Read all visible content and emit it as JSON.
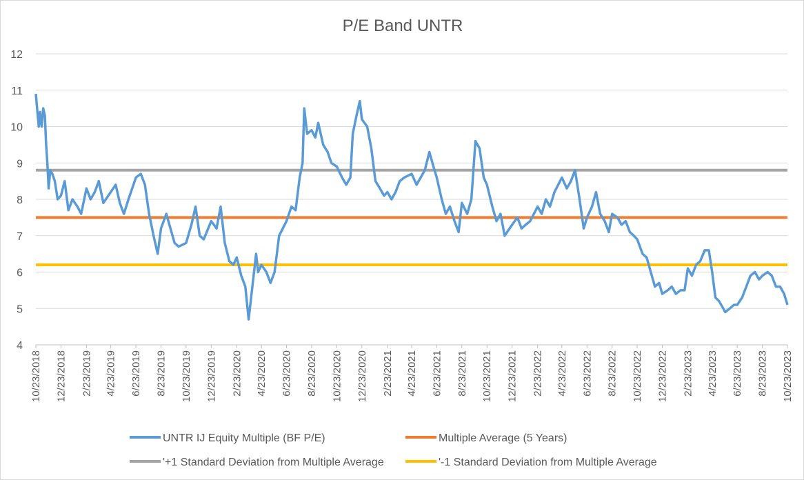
{
  "chart_data": {
    "type": "line",
    "title": "P/E Band UNTR",
    "xlabel": "",
    "ylabel": "",
    "ylim": [
      4,
      12
    ],
    "yticks": [
      "4",
      "5",
      "6",
      "7",
      "8",
      "9",
      "10",
      "11",
      "12"
    ],
    "xrange": [
      "10/23/2018",
      "10/23/2023"
    ],
    "xticks": [
      "10/23/2018",
      "12/23/2018",
      "2/23/2019",
      "4/23/2019",
      "6/23/2019",
      "8/23/2019",
      "10/23/2019",
      "12/23/2019",
      "2/23/2020",
      "4/23/2020",
      "6/23/2020",
      "8/23/2020",
      "10/23/2020",
      "12/23/2020",
      "2/23/2021",
      "4/23/2021",
      "6/23/2021",
      "8/23/2021",
      "10/23/2021",
      "12/23/2021",
      "2/23/2022",
      "4/23/2022",
      "6/23/2022",
      "8/23/2022",
      "10/23/2022",
      "12/23/2022",
      "2/23/2023",
      "4/23/2023",
      "6/23/2023",
      "8/23/2023",
      "10/23/2023"
    ],
    "grid": true,
    "legend_position": "bottom",
    "series": [
      {
        "name": "UNTR IJ Equity Multiple (BF P/E)",
        "color": "#5b9bd5",
        "points": [
          [
            "10/23/2018",
            10.9
          ],
          [
            "10/26/2018",
            10.5
          ],
          [
            "10/30/2018",
            10.0
          ],
          [
            "11/2/2018",
            10.4
          ],
          [
            "11/6/2018",
            10.0
          ],
          [
            "11/10/2018",
            10.5
          ],
          [
            "11/14/2018",
            10.3
          ],
          [
            "11/17/2018",
            9.5
          ],
          [
            "11/20/2018",
            9.0
          ],
          [
            "11/23/2018",
            8.3
          ],
          [
            "11/27/2018",
            8.8
          ],
          [
            "12/2/2018",
            8.7
          ],
          [
            "12/8/2018",
            8.5
          ],
          [
            "12/15/2018",
            8.0
          ],
          [
            "12/23/2018",
            8.1
          ],
          [
            "1/1/2019",
            8.5
          ],
          [
            "1/10/2019",
            7.7
          ],
          [
            "1/20/2019",
            8.0
          ],
          [
            "2/1/2019",
            7.8
          ],
          [
            "2/10/2019",
            7.6
          ],
          [
            "2/23/2019",
            8.3
          ],
          [
            "3/5/2019",
            8.0
          ],
          [
            "3/15/2019",
            8.2
          ],
          [
            "3/25/2019",
            8.5
          ],
          [
            "4/5/2019",
            7.9
          ],
          [
            "4/23/2019",
            8.2
          ],
          [
            "5/5/2019",
            8.4
          ],
          [
            "5/15/2019",
            7.9
          ],
          [
            "5/25/2019",
            7.6
          ],
          [
            "6/5/2019",
            8.0
          ],
          [
            "6/23/2019",
            8.6
          ],
          [
            "7/5/2019",
            8.7
          ],
          [
            "7/15/2019",
            8.4
          ],
          [
            "7/25/2019",
            7.6
          ],
          [
            "8/5/2019",
            7.0
          ],
          [
            "8/15/2019",
            6.5
          ],
          [
            "8/23/2019",
            7.2
          ],
          [
            "9/5/2019",
            7.6
          ],
          [
            "9/15/2019",
            7.2
          ],
          [
            "9/25/2019",
            6.8
          ],
          [
            "10/5/2019",
            6.7
          ],
          [
            "10/23/2019",
            6.8
          ],
          [
            "11/5/2019",
            7.3
          ],
          [
            "11/15/2019",
            7.8
          ],
          [
            "11/25/2019",
            7.0
          ],
          [
            "12/5/2019",
            6.9
          ],
          [
            "12/23/2019",
            7.4
          ],
          [
            "1/5/2020",
            7.2
          ],
          [
            "1/15/2020",
            7.8
          ],
          [
            "1/25/2020",
            6.8
          ],
          [
            "2/5/2020",
            6.3
          ],
          [
            "2/15/2020",
            6.2
          ],
          [
            "2/23/2020",
            6.4
          ],
          [
            "3/5/2020",
            5.9
          ],
          [
            "3/15/2020",
            5.6
          ],
          [
            "3/23/2020",
            4.7
          ],
          [
            "4/1/2020",
            5.6
          ],
          [
            "4/10/2020",
            6.5
          ],
          [
            "4/15/2020",
            6.0
          ],
          [
            "4/23/2020",
            6.2
          ],
          [
            "5/5/2020",
            6.0
          ],
          [
            "5/15/2020",
            5.7
          ],
          [
            "5/25/2020",
            6.0
          ],
          [
            "6/5/2020",
            7.0
          ],
          [
            "6/23/2020",
            7.4
          ],
          [
            "7/5/2020",
            7.8
          ],
          [
            "7/15/2020",
            7.7
          ],
          [
            "7/25/2020",
            8.6
          ],
          [
            "8/1/2020",
            9.0
          ],
          [
            "8/5/2020",
            10.5
          ],
          [
            "8/12/2020",
            9.8
          ],
          [
            "8/23/2020",
            9.9
          ],
          [
            "9/1/2020",
            9.7
          ],
          [
            "9/8/2020",
            10.1
          ],
          [
            "9/20/2020",
            9.5
          ],
          [
            "10/1/2020",
            9.3
          ],
          [
            "10/10/2020",
            9.0
          ],
          [
            "10/23/2020",
            8.9
          ],
          [
            "11/5/2020",
            8.6
          ],
          [
            "11/15/2020",
            8.4
          ],
          [
            "11/25/2020",
            8.6
          ],
          [
            "12/1/2020",
            9.8
          ],
          [
            "12/10/2020",
            10.3
          ],
          [
            "12/18/2020",
            10.7
          ],
          [
            "12/23/2020",
            10.2
          ],
          [
            "1/5/2021",
            10.0
          ],
          [
            "1/15/2021",
            9.4
          ],
          [
            "1/25/2021",
            8.5
          ],
          [
            "2/5/2021",
            8.3
          ],
          [
            "2/15/2021",
            8.1
          ],
          [
            "2/23/2021",
            8.2
          ],
          [
            "3/5/2021",
            8.0
          ],
          [
            "3/15/2021",
            8.2
          ],
          [
            "3/25/2021",
            8.5
          ],
          [
            "4/5/2021",
            8.6
          ],
          [
            "4/23/2021",
            8.7
          ],
          [
            "5/5/2021",
            8.4
          ],
          [
            "5/15/2021",
            8.6
          ],
          [
            "5/25/2021",
            8.8
          ],
          [
            "6/5/2021",
            9.3
          ],
          [
            "6/15/2021",
            8.9
          ],
          [
            "6/23/2021",
            8.6
          ],
          [
            "7/5/2021",
            8.0
          ],
          [
            "7/15/2021",
            7.6
          ],
          [
            "7/25/2021",
            7.8
          ],
          [
            "8/5/2021",
            7.4
          ],
          [
            "8/15/2021",
            7.1
          ],
          [
            "8/23/2021",
            7.9
          ],
          [
            "9/5/2021",
            7.6
          ],
          [
            "9/15/2021",
            8.0
          ],
          [
            "9/25/2021",
            9.6
          ],
          [
            "10/5/2021",
            9.4
          ],
          [
            "10/15/2021",
            8.6
          ],
          [
            "10/23/2021",
            8.4
          ],
          [
            "11/5/2021",
            7.8
          ],
          [
            "11/15/2021",
            7.4
          ],
          [
            "11/25/2021",
            7.6
          ],
          [
            "12/5/2021",
            7.0
          ],
          [
            "12/23/2021",
            7.3
          ],
          [
            "1/5/2022",
            7.5
          ],
          [
            "1/15/2022",
            7.2
          ],
          [
            "1/25/2022",
            7.3
          ],
          [
            "2/5/2022",
            7.4
          ],
          [
            "2/23/2022",
            7.8
          ],
          [
            "3/5/2022",
            7.6
          ],
          [
            "3/15/2022",
            8.0
          ],
          [
            "3/25/2022",
            7.8
          ],
          [
            "4/5/2022",
            8.2
          ],
          [
            "4/23/2022",
            8.6
          ],
          [
            "5/5/2022",
            8.3
          ],
          [
            "5/15/2022",
            8.5
          ],
          [
            "5/25/2022",
            8.8
          ],
          [
            "6/5/2022",
            8.0
          ],
          [
            "6/15/2022",
            7.2
          ],
          [
            "6/23/2022",
            7.5
          ],
          [
            "7/5/2022",
            7.8
          ],
          [
            "7/15/2022",
            8.2
          ],
          [
            "7/25/2022",
            7.6
          ],
          [
            "8/5/2022",
            7.4
          ],
          [
            "8/15/2022",
            7.1
          ],
          [
            "8/23/2022",
            7.6
          ],
          [
            "9/5/2022",
            7.5
          ],
          [
            "9/15/2022",
            7.3
          ],
          [
            "9/25/2022",
            7.4
          ],
          [
            "10/5/2022",
            7.1
          ],
          [
            "10/15/2022",
            7.0
          ],
          [
            "10/23/2022",
            6.9
          ],
          [
            "11/5/2022",
            6.5
          ],
          [
            "11/15/2022",
            6.4
          ],
          [
            "11/25/2022",
            6.0
          ],
          [
            "12/5/2022",
            5.6
          ],
          [
            "12/15/2022",
            5.7
          ],
          [
            "12/23/2022",
            5.4
          ],
          [
            "1/5/2023",
            5.5
          ],
          [
            "1/15/2023",
            5.6
          ],
          [
            "1/25/2023",
            5.4
          ],
          [
            "2/5/2023",
            5.5
          ],
          [
            "2/15/2023",
            5.5
          ],
          [
            "2/23/2023",
            6.1
          ],
          [
            "3/5/2023",
            5.9
          ],
          [
            "3/15/2023",
            6.2
          ],
          [
            "3/25/2023",
            6.3
          ],
          [
            "4/5/2023",
            6.6
          ],
          [
            "4/15/2023",
            6.6
          ],
          [
            "4/23/2023",
            6.0
          ],
          [
            "5/1/2023",
            5.3
          ],
          [
            "5/10/2023",
            5.2
          ],
          [
            "5/20/2023",
            5.0
          ],
          [
            "5/25/2023",
            4.9
          ],
          [
            "6/5/2023",
            5.0
          ],
          [
            "6/15/2023",
            5.1
          ],
          [
            "6/23/2023",
            5.1
          ],
          [
            "7/5/2023",
            5.3
          ],
          [
            "7/15/2023",
            5.6
          ],
          [
            "7/25/2023",
            5.9
          ],
          [
            "8/5/2023",
            6.0
          ],
          [
            "8/15/2023",
            5.8
          ],
          [
            "8/23/2023",
            5.9
          ],
          [
            "9/5/2023",
            6.0
          ],
          [
            "9/15/2023",
            5.9
          ],
          [
            "9/25/2023",
            5.6
          ],
          [
            "10/5/2023",
            5.6
          ],
          [
            "10/15/2023",
            5.4
          ],
          [
            "10/23/2023",
            5.1
          ]
        ]
      },
      {
        "name": "Multiple Average (5 Years)",
        "color": "#ed7d31",
        "constant": 7.5
      },
      {
        "name": "'+1 Standard Deviation from Multiple Average",
        "color": "#a5a5a5",
        "constant": 8.8
      },
      {
        "name": "'-1 Standard Deviation from Multiple Average",
        "color": "#ffc000",
        "constant": 6.2
      }
    ]
  }
}
